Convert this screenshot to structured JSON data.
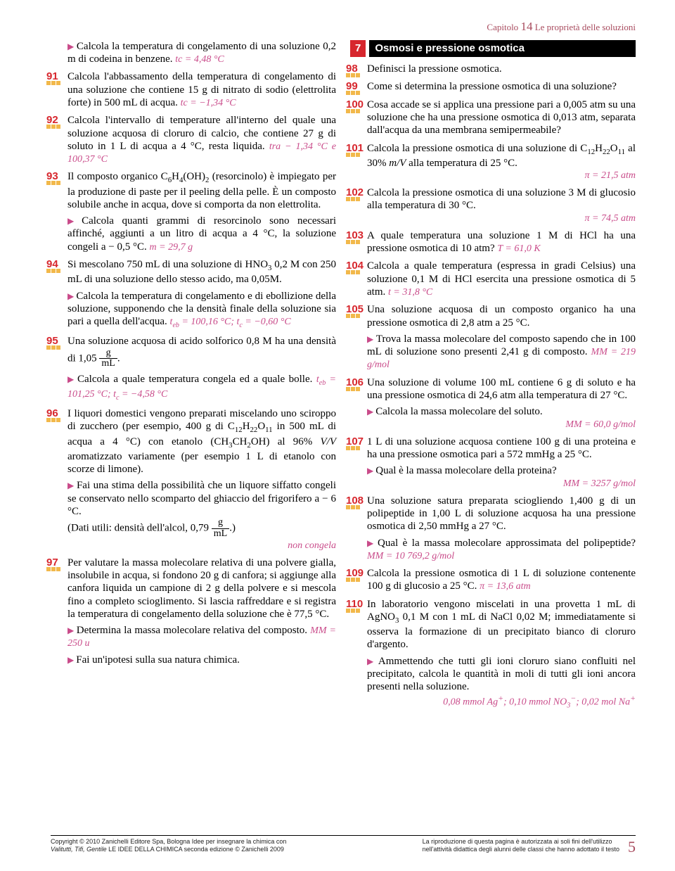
{
  "chapter": {
    "label": "Capitolo",
    "num": "14",
    "title": "Le proprietà delle soluzioni"
  },
  "section7": {
    "num": "7",
    "title": "Osmosi e pressione osmotica"
  },
  "ex": {
    "p90a": "Calcola la temperatura di congelamento di una soluzione 0,2 m di codeina in benzene.",
    "p90ans": "tc = 4,48 °C",
    "n91": "91",
    "p91": "Calcola l'abbassamento della temperatura di congelamento di una soluzione che contiene 15 g di nitrato di sodio (elettrolita forte) in 500 mL di acqua.",
    "a91": "tc = −1,34 °C",
    "n92": "92",
    "p92": "Calcola l'intervallo di temperature all'interno del quale una soluzione acquosa di cloruro di calcio, che contiene 27 g di soluto in 1 L di acqua a 4 °C, resta liquida.",
    "a92": "tra − 1,34 °C e 100,37 °C",
    "n93": "93",
    "p93a": "Il composto organico C6H4(OH)2 (resorcinolo) è impiegato per la produzione di paste per il peeling della pelle. È un composto solubile anche in acqua, dove si comporta da non elettrolita.",
    "p93b": "Calcola quanti grammi di resorcinolo sono necessari affinché, aggiunti a un litro di acqua a 4 °C, la soluzione congeli a − 0,5 °C.",
    "a93": "m = 29,7 g",
    "n94": "94",
    "p94a": "Si mescolano 750 mL di una soluzione di HNO3 0,2 M con 250 mL di una soluzione dello stesso acido, ma 0,05M.",
    "p94b": "Calcola la temperatura di congelamento e di ebollizione della soluzione, supponendo che la densità finale della soluzione sia pari a quella dell'acqua.",
    "a94": "teb = 100,16 °C; tc = −0,60 °C",
    "n95": "95",
    "p95a": "Una soluzione acquosa di acido solforico 0,8 M ha una densità di 1,05",
    "p95a2": ".",
    "p95b": "Calcola a quale temperatura congela ed a quale bolle.",
    "a95": "teb = 101,25 °C; tc = −4,58 °C",
    "n96": "96",
    "p96a": "I liquori domestici vengono preparati miscelando uno sciroppo di zucchero (per esempio, 400 g di C12H22O11 in 500 mL di acqua a 4 °C) con etanolo (CH3CH2OH) al 96% V/V aromatizzato variamente (per esempio 1 L di etanolo con scorze di limone).",
    "p96b1": "Fai una stima della possibilità che un liquore siffatto congeli se conservato nello scomparto del ghiaccio del frigorifero a − 6 °C.",
    "p96b2a": "(Dati utili: densità dell'alcol, 0,79",
    "p96b2b": ".)",
    "a96": "non congela",
    "n97": "97",
    "p97a": "Per valutare la massa molecolare relativa di una polvere gialla, insolubile in acqua, si fondono 20 g di canfora; si aggiunge alla canfora liquida un campione di 2 g della polvere e si mescola fino a completo scioglimento. Si lascia raffreddare e si registra la temperatura di congelamento della soluzione che è 77,5 °C.",
    "p97b": "Determina la massa molecolare relativa del composto.",
    "a97": "MM = 250 u",
    "p97c": "Fai un'ipotesi sulla sua natura chimica.",
    "n98": "98",
    "p98": "Definisci la pressione osmotica.",
    "n99": "99",
    "p99": "Come si determina la pressione osmotica di una soluzione?",
    "n100": "100",
    "p100": "Cosa accade se si applica una pressione pari a 0,005 atm su una soluzione che ha una pressione osmotica di 0,013 atm, separata dall'acqua da una membrana semipermeabile?",
    "n101": "101",
    "p101": "Calcola la pressione osmotica di una soluzione di C12H22O11 al 30% m/V alla temperatura di 25 °C.",
    "a101": "π = 21,5 atm",
    "n102": "102",
    "p102": "Calcola la pressione osmotica di una soluzione 3 M di glucosio alla temperatura di 30 °C.",
    "a102": "π = 74,5 atm",
    "n103": "103",
    "p103": "A quale temperatura una soluzione 1 M di HCl ha una pressione osmotica di 10 atm?",
    "a103": "T = 61,0 K",
    "n104": "104",
    "p104": "Calcola a quale temperatura (espressa in gradi Celsius) una soluzione 0,1 M di HCl esercita una pressione osmotica di 5 atm.",
    "a104": "t = 31,8 °C",
    "n105": "105",
    "p105a": "Una soluzione acquosa di un composto organico ha una pressione osmotica di 2,8 atm a 25 °C.",
    "p105b": "Trova la massa molecolare del composto sapendo che in 100 mL di soluzione sono presenti 2,41 g di composto.",
    "a105": "MM = 219 g/mol",
    "n106": "106",
    "p106a": "Una soluzione di volume 100 mL contiene 6 g di soluto e ha una pressione osmotica di 24,6 atm alla temperatura di 27 °C.",
    "p106b": "Calcola la massa molecolare del soluto.",
    "a106": "MM = 60,0 g/mol",
    "n107": "107",
    "p107a": "1 L di una soluzione acquosa contiene 100 g di una proteina e ha una pressione osmotica pari a 572 mmHg a 25 °C.",
    "p107b": "Qual è la massa molecolare della proteina?",
    "a107": "MM = 3257 g/mol",
    "n108": "108",
    "p108a": "Una soluzione satura preparata sciogliendo 1,400 g di un polipeptide in 1,00 L di soluzione acquosa ha una pressione osmotica di 2,50 mmHg a 27 °C.",
    "p108b": "Qual è la massa molecolare approssimata del polipeptide?",
    "a108": "MM = 10 769,2 g/mol",
    "n109": "109",
    "p109": "Calcola la pressione osmotica di 1 L di soluzione contenente 100 g di glucosio a 25 °C.",
    "a109": "π = 13,6 atm",
    "n110": "110",
    "p110a": "In laboratorio vengono miscelati in una provetta 1 mL di AgNO3 0,1 M con 1 mL di NaCl 0,02 M; immediatamente si osserva la formazione di un precipitato bianco di cloruro d'argento.",
    "p110b": "Ammettendo che tutti gli ioni cloruro siano confluiti nel precipitato, calcola le quantità in moli di tutti gli ioni ancora presenti nella soluzione.",
    "a110": "0,08 mmol Ag+; 0,10 mmol NO3−; 0,02 mol Na+"
  },
  "footer": {
    "left1": "Copyright © 2010 Zanichelli Editore Spa, Bologna Idee per insegnare la chimica con",
    "left2": "Valitutti, Tifi, Gentile LE IDEE DELLA CHIMICA seconda edizione © Zanichelli 2009",
    "right1": "La riproduzione di questa pagina è autorizzata ai soli fini dell'utilizzo",
    "right2": "nell'attività didattica degli alunni delle classi che hanno adottato il testo",
    "page": "5"
  }
}
